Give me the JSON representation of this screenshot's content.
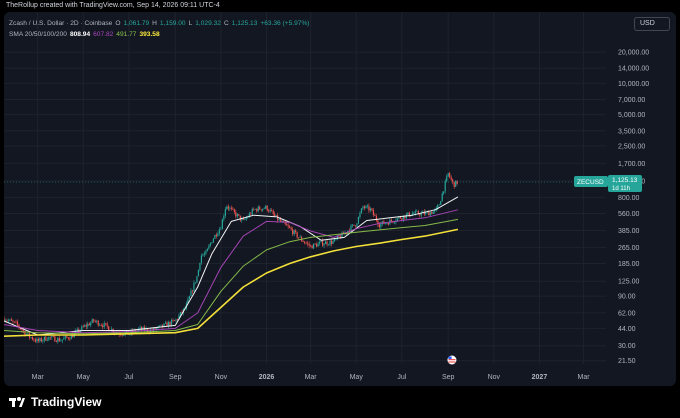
{
  "header": {
    "credit": "TheRollup created with TradingView.com, Sep 14, 2026 09:11 UTC-4"
  },
  "legend": {
    "symbol_line": "Zcash / U.S. Dollar · 2D · Coinbase",
    "open_label": "O",
    "open": "1,061.79",
    "high_label": "H",
    "high": "1,159.00",
    "low_label": "L",
    "low": "1,029.32",
    "close_label": "C",
    "close": "1,125.13",
    "change": "+63.36 (+5.97%)",
    "sma_label": "SMA 20/50/100/200",
    "sma20": "808.94",
    "sma50": "607.82",
    "sma100": "491.77",
    "sma200": "393.58"
  },
  "toolbar": {
    "currency_label": "USD"
  },
  "price_tag": {
    "symbol": "ZECUSD",
    "price": "1,125.13",
    "countdown": "1d 11h"
  },
  "footer": {
    "brand": "TradingView"
  },
  "colors": {
    "background": "#131722",
    "up": "#26a69a",
    "down": "#ef5350",
    "sma20": "#ffffff",
    "sma50": "#ab47bc",
    "sma100": "#8bc34a",
    "sma200": "#ffeb3b"
  },
  "icons": {
    "logo": "tradingview-logo-icon",
    "event": "us-flag-event-icon"
  },
  "chart_data": {
    "type": "candlestick",
    "symbol": "ZECUSD",
    "interval": "2D",
    "y_scale": "log",
    "ylim": [
      20,
      25000
    ],
    "y_ticks": [
      "21.50",
      "30.00",
      "44.00",
      "62.00",
      "90.00",
      "125.00",
      "185.00",
      "265.00",
      "385.00",
      "560.00",
      "800.00",
      "1,150.00",
      "1,700.00",
      "2,500.00",
      "3,500.00",
      "5,000.00",
      "7,000.00",
      "10,000.00",
      "14,000.00",
      "20,000.00"
    ],
    "y_tick_values": [
      21.5,
      30,
      44,
      62,
      90,
      125,
      185,
      265,
      385,
      560,
      800,
      1150,
      1700,
      2500,
      3500,
      5000,
      7000,
      10000,
      14000,
      20000
    ],
    "x_ticks": [
      "Mar",
      "May",
      "Jul",
      "Sep",
      "Nov",
      "2026",
      "Mar",
      "May",
      "Jul",
      "Sep",
      "Nov",
      "2027",
      "Mar"
    ],
    "x_tick_dates": [
      "2025-03-01",
      "2025-05-01",
      "2025-07-01",
      "2025-09-01",
      "2025-11-01",
      "2026-01-01",
      "2026-03-01",
      "2026-05-01",
      "2026-07-01",
      "2026-09-01",
      "2026-11-01",
      "2027-01-01",
      "2027-03-01"
    ],
    "x_range": [
      "2025-01-15",
      "2027-03-31"
    ],
    "last_price": 1125.13,
    "close_path": [
      [
        "2025-01-15",
        55
      ],
      [
        "2025-02-01",
        48
      ],
      [
        "2025-02-15",
        38
      ],
      [
        "2025-03-01",
        33
      ],
      [
        "2025-03-15",
        36
      ],
      [
        "2025-04-01",
        34
      ],
      [
        "2025-04-15",
        37
      ],
      [
        "2025-05-01",
        45
      ],
      [
        "2025-05-15",
        52
      ],
      [
        "2025-06-01",
        46
      ],
      [
        "2025-06-15",
        40
      ],
      [
        "2025-07-01",
        39
      ],
      [
        "2025-07-15",
        43
      ],
      [
        "2025-08-01",
        42
      ],
      [
        "2025-08-15",
        46
      ],
      [
        "2025-09-01",
        52
      ],
      [
        "2025-09-15",
        70
      ],
      [
        "2025-10-01",
        145
      ],
      [
        "2025-10-05",
        220
      ],
      [
        "2025-10-12",
        230
      ],
      [
        "2025-10-20",
        310
      ],
      [
        "2025-11-01",
        420
      ],
      [
        "2025-11-08",
        680
      ],
      [
        "2025-11-15",
        600
      ],
      [
        "2025-12-01",
        470
      ],
      [
        "2025-12-15",
        610
      ],
      [
        "2026-01-01",
        640
      ],
      [
        "2026-01-15",
        500
      ],
      [
        "2026-02-01",
        400
      ],
      [
        "2026-02-15",
        320
      ],
      [
        "2026-03-01",
        270
      ],
      [
        "2026-03-15",
        290
      ],
      [
        "2026-04-01",
        300
      ],
      [
        "2026-04-15",
        360
      ],
      [
        "2026-05-01",
        450
      ],
      [
        "2026-05-10",
        650
      ],
      [
        "2026-05-20",
        610
      ],
      [
        "2026-06-01",
        440
      ],
      [
        "2026-06-15",
        470
      ],
      [
        "2026-07-01",
        520
      ],
      [
        "2026-07-15",
        560
      ],
      [
        "2026-08-01",
        560
      ],
      [
        "2026-08-15",
        590
      ],
      [
        "2026-08-20",
        690
      ],
      [
        "2026-08-25",
        920
      ],
      [
        "2026-09-01",
        1350
      ],
      [
        "2026-09-08",
        1060
      ],
      [
        "2026-09-14",
        1125
      ]
    ],
    "series": [
      {
        "name": "SMA 20",
        "points": [
          [
            "2025-01-15",
            52
          ],
          [
            "2025-03-01",
            38
          ],
          [
            "2025-05-01",
            42
          ],
          [
            "2025-07-01",
            42
          ],
          [
            "2025-09-01",
            47
          ],
          [
            "2025-10-01",
            110
          ],
          [
            "2025-10-20",
            230
          ],
          [
            "2025-11-15",
            470
          ],
          [
            "2025-12-15",
            540
          ],
          [
            "2026-01-15",
            520
          ],
          [
            "2026-02-15",
            420
          ],
          [
            "2026-03-15",
            310
          ],
          [
            "2026-04-15",
            330
          ],
          [
            "2026-05-15",
            480
          ],
          [
            "2026-06-15",
            510
          ],
          [
            "2026-07-15",
            540
          ],
          [
            "2026-08-15",
            610
          ],
          [
            "2026-09-14",
            809
          ]
        ]
      },
      {
        "name": "SMA 50",
        "points": [
          [
            "2025-01-15",
            48
          ],
          [
            "2025-03-01",
            42
          ],
          [
            "2025-05-01",
            40
          ],
          [
            "2025-07-01",
            41
          ],
          [
            "2025-09-01",
            44
          ],
          [
            "2025-10-01",
            62
          ],
          [
            "2025-11-01",
            170
          ],
          [
            "2025-12-01",
            340
          ],
          [
            "2026-01-01",
            470
          ],
          [
            "2026-02-01",
            460
          ],
          [
            "2026-03-01",
            380
          ],
          [
            "2026-04-01",
            330
          ],
          [
            "2026-05-01",
            400
          ],
          [
            "2026-06-01",
            450
          ],
          [
            "2026-07-01",
            480
          ],
          [
            "2026-08-01",
            510
          ],
          [
            "2026-09-14",
            608
          ]
        ]
      },
      {
        "name": "SMA 100",
        "points": [
          [
            "2025-01-15",
            42
          ],
          [
            "2025-03-01",
            40
          ],
          [
            "2025-05-01",
            39
          ],
          [
            "2025-07-01",
            40
          ],
          [
            "2025-09-01",
            42
          ],
          [
            "2025-10-01",
            48
          ],
          [
            "2025-11-01",
            100
          ],
          [
            "2025-12-01",
            175
          ],
          [
            "2026-01-01",
            250
          ],
          [
            "2026-02-01",
            300
          ],
          [
            "2026-03-01",
            330
          ],
          [
            "2026-04-01",
            350
          ],
          [
            "2026-05-01",
            370
          ],
          [
            "2026-06-01",
            390
          ],
          [
            "2026-07-01",
            410
          ],
          [
            "2026-08-01",
            430
          ],
          [
            "2026-09-14",
            492
          ]
        ]
      },
      {
        "name": "SMA 200",
        "points": [
          [
            "2025-01-15",
            37
          ],
          [
            "2025-03-01",
            38
          ],
          [
            "2025-05-01",
            38
          ],
          [
            "2025-07-01",
            39
          ],
          [
            "2025-09-01",
            40
          ],
          [
            "2025-10-01",
            44
          ],
          [
            "2025-11-01",
            70
          ],
          [
            "2025-12-01",
            110
          ],
          [
            "2026-01-01",
            150
          ],
          [
            "2026-02-01",
            185
          ],
          [
            "2026-03-01",
            215
          ],
          [
            "2026-04-01",
            245
          ],
          [
            "2026-05-01",
            270
          ],
          [
            "2026-06-01",
            290
          ],
          [
            "2026-07-01",
            315
          ],
          [
            "2026-08-01",
            340
          ],
          [
            "2026-09-14",
            394
          ]
        ]
      }
    ],
    "grid": true
  }
}
